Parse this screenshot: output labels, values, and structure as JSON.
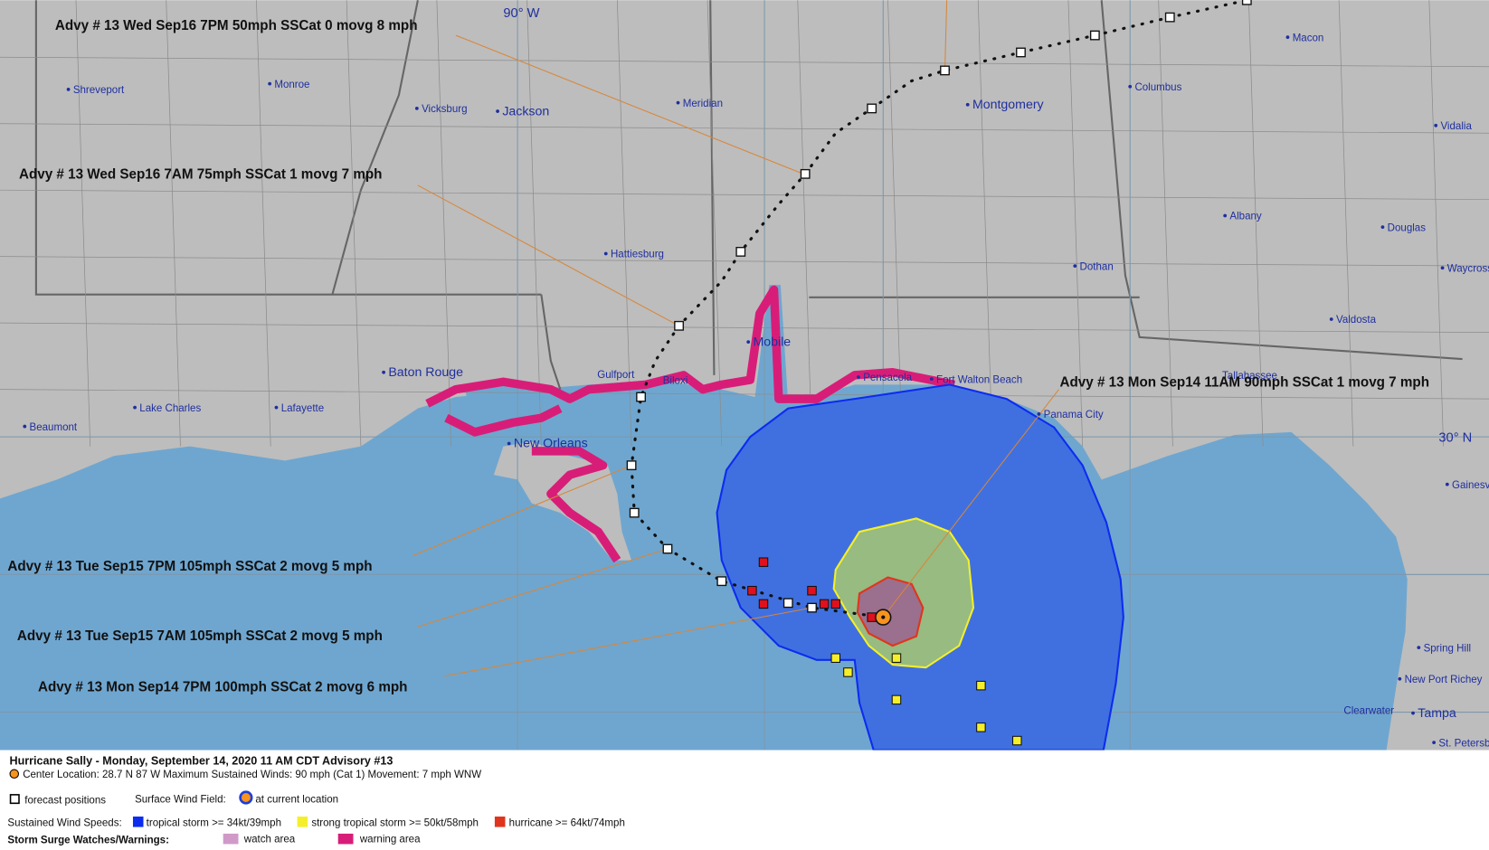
{
  "map": {
    "lon_label": "90° W",
    "lat_label": "30° N",
    "cities": [
      "Shreveport",
      "Monroe",
      "Vicksburg",
      "Jackson",
      "Meridian",
      "Montgomery",
      "Columbus",
      "Macon",
      "Vidalia",
      "Albany",
      "Douglas",
      "Waycross",
      "Hattiesburg",
      "Dothan",
      "Valdosta",
      "Mobile",
      "Baton Rouge",
      "Gulfport",
      "Biloxi",
      "Pensacola",
      "Fort Walton Beach",
      "Tallahassee",
      "Panama City",
      "Lake Charles",
      "Lafayette",
      "Beaumont",
      "New Orleans",
      "Gainesville",
      "Spring Hill",
      "New Port Richey",
      "Clearwater",
      "Tampa",
      "St. Petersburg"
    ],
    "advisories": [
      "Advy # 13 Wed Sep16 7PM  50mph SSCat 0 movg 8 mph",
      "Advy # 13 Wed Sep16 7AM  75mph SSCat 1 movg 7 mph",
      "Advy # 13 Mon Sep14 11AM  90mph SSCat 1 movg 7 mph",
      "Advy # 13 Tue Sep15 7PM  105mph SSCat 2 movg 5 mph",
      "Advy # 13 Tue Sep15 7AM  105mph SSCat 2 movg 5 mph",
      "Advy # 13 Mon Sep14 7PM  100mph SSCat 2 movg 6 mph"
    ]
  },
  "legend": {
    "title": "Hurricane Sally  -  Monday, September 14, 2020  11 AM CDT   Advisory #13",
    "center": "Center Location: 28.7 N  87 W   Maximum Sustained Winds: 90 mph (Cat 1) Movement: 7 mph WNW",
    "forecast_positions": "forecast positions",
    "wind_field": "Surface Wind Field:",
    "current_location": "at current location",
    "wind_speeds": "Sustained Wind Speeds:",
    "tropical_storm": "tropical storm >= 34kt/39mph",
    "strong_tropical_storm": "strong tropical storm >= 50kt/58mph",
    "hurricane": "hurricane >= 64kt/74mph",
    "surge": "Storm Surge Watches/Warnings:",
    "watch": "watch area",
    "warning": "warning area"
  }
}
